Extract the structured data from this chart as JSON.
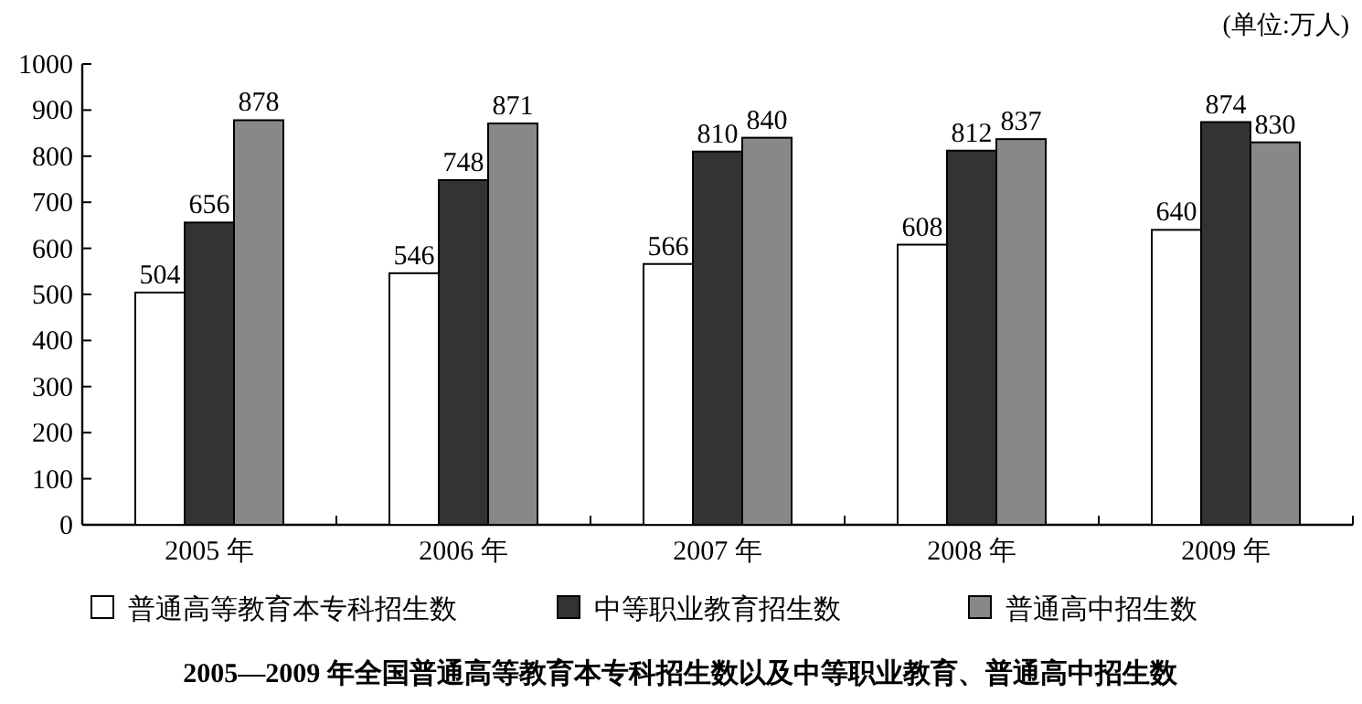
{
  "chart_data": {
    "type": "bar",
    "title": "2005—2009 年全国普通高等教育本专科招生数以及中等职业教育、普通高中招生数",
    "annotations": [
      "(单位:万人)"
    ],
    "categories": [
      "2005 年",
      "2006 年",
      "2007 年",
      "2008 年",
      "2009 年"
    ],
    "series": [
      {
        "name": "普通高等教育本专科招生数",
        "color": "#ffffff",
        "values": [
          504,
          546,
          566,
          608,
          640
        ]
      },
      {
        "name": "中等职业教育招生数",
        "color": "#333333",
        "values": [
          656,
          748,
          810,
          812,
          874
        ]
      },
      {
        "name": "普通高中招生数",
        "color": "#888888",
        "values": [
          878,
          871,
          840,
          837,
          830
        ]
      }
    ],
    "ylim": [
      0,
      1000
    ],
    "yticks": [
      0,
      100,
      200,
      300,
      400,
      500,
      600,
      700,
      800,
      900,
      1000
    ],
    "data_labels": true,
    "legend": "bottom",
    "grid": false
  }
}
